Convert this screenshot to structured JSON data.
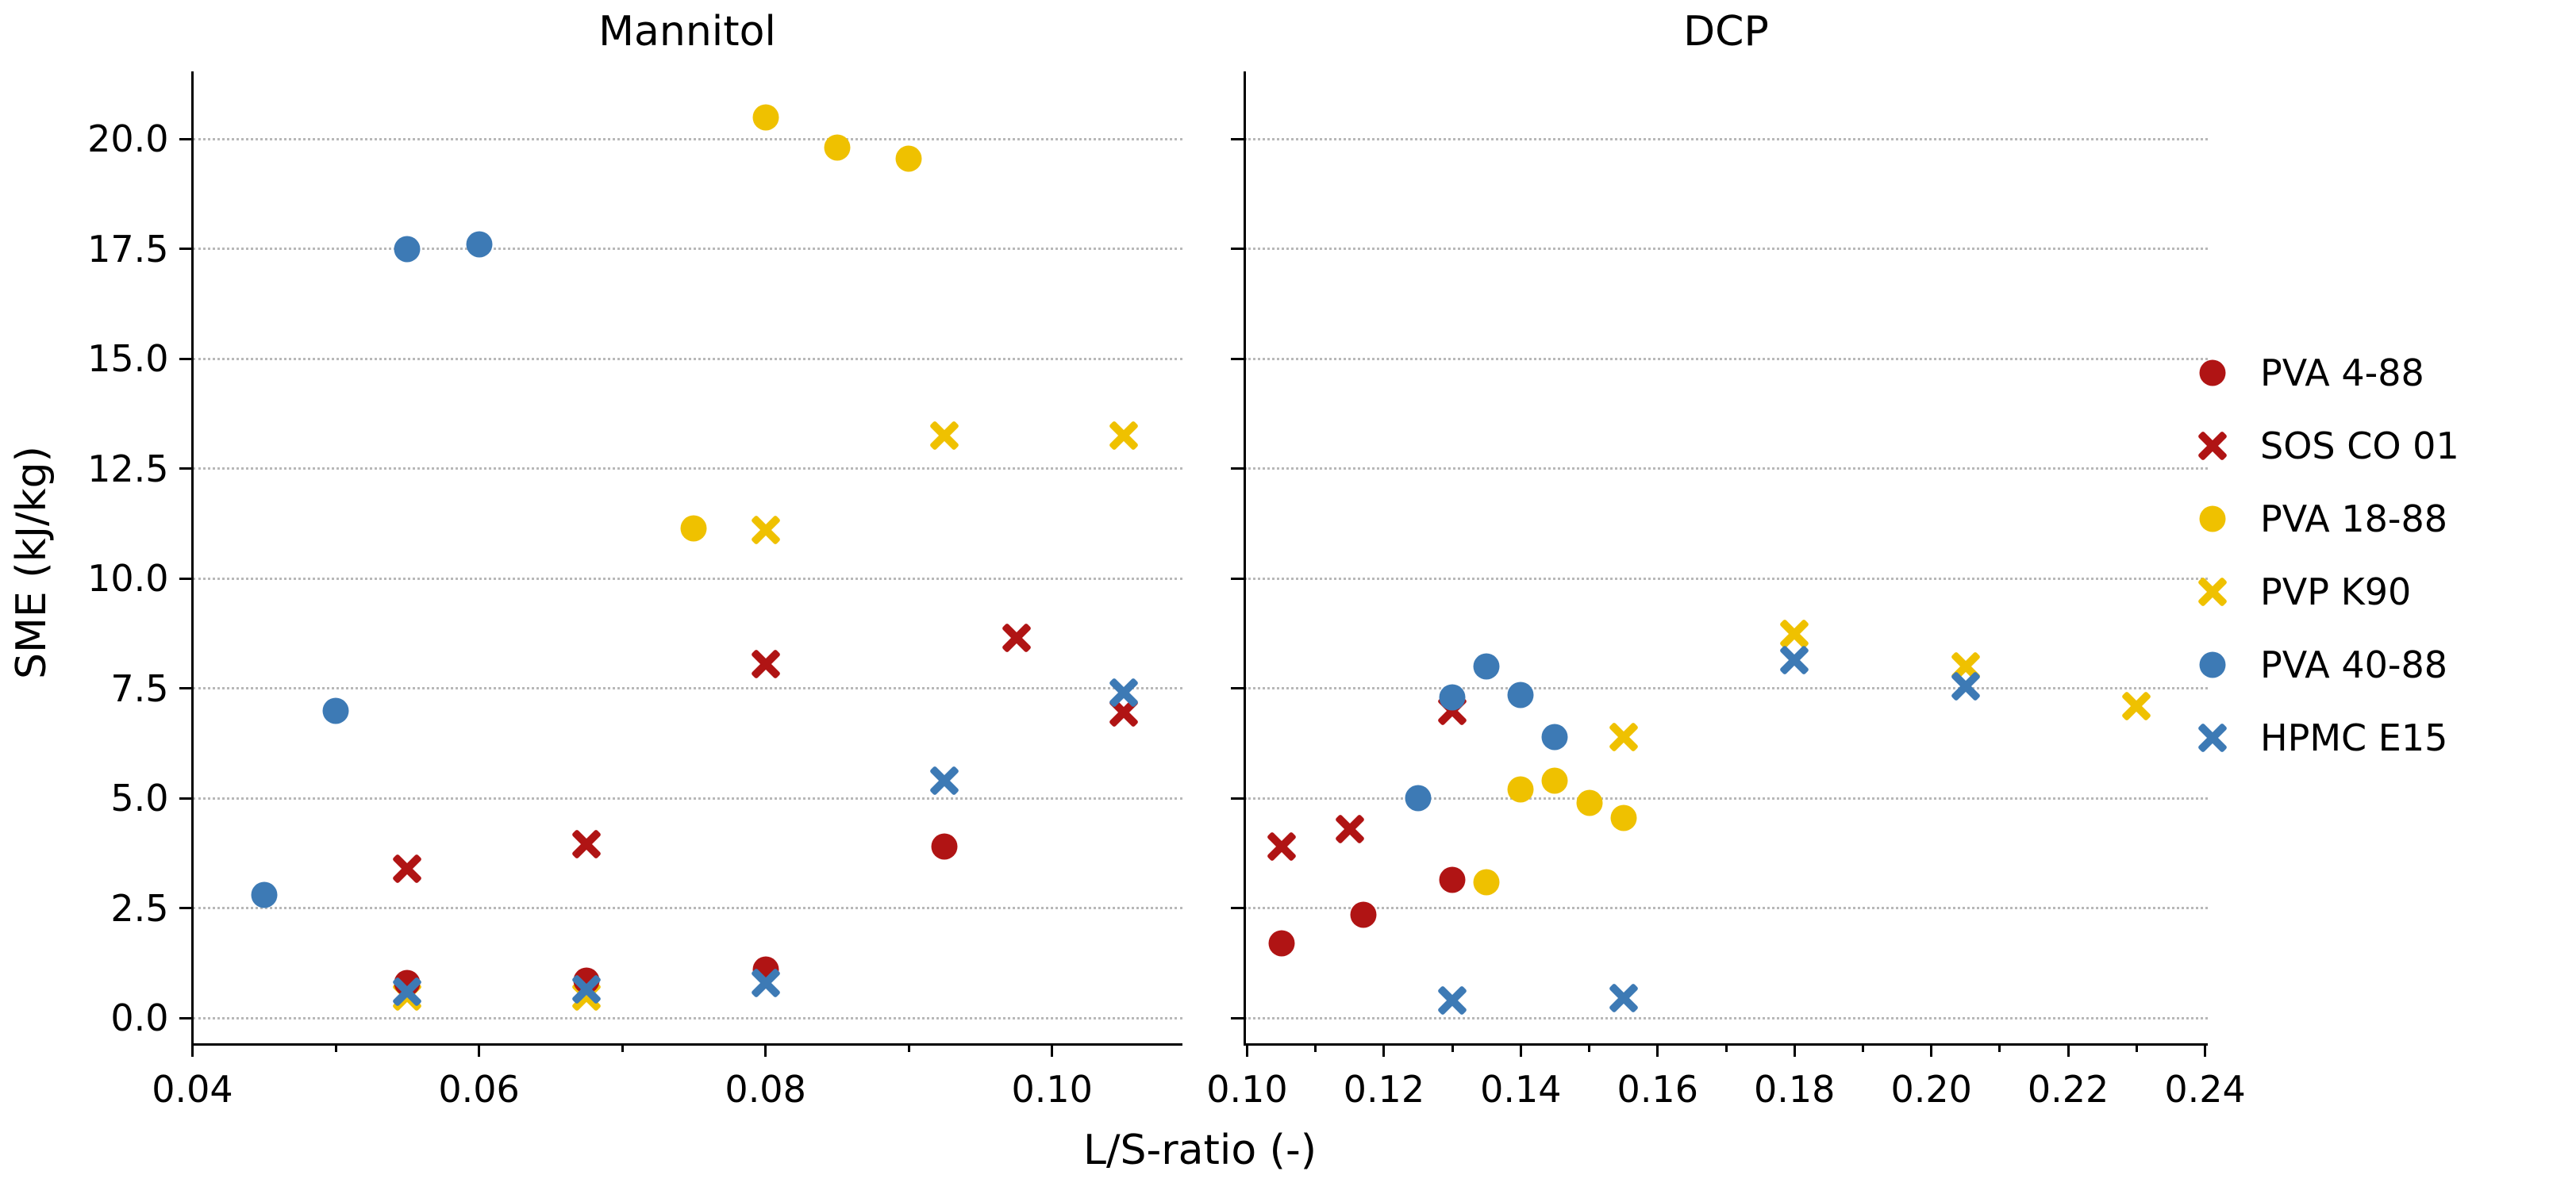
{
  "figure": {
    "ylabel": "SME (kJ/kg)",
    "xlabel": "L/S-ratio (-)"
  },
  "colors": {
    "dark_red": "#b01414",
    "gold": "#efc100",
    "blue": "#3d7ab5",
    "grid": "#b8b8b8",
    "text": "#000000"
  },
  "legend": [
    {
      "label": "PVA 4-88",
      "marker": "circle",
      "color": "#b01414"
    },
    {
      "label": "SOS CO 01",
      "marker": "x",
      "color": "#b01414"
    },
    {
      "label": "PVA 18-88",
      "marker": "circle",
      "color": "#efc100"
    },
    {
      "label": "PVP K90",
      "marker": "x",
      "color": "#efc100"
    },
    {
      "label": "PVA 40-88",
      "marker": "circle",
      "color": "#3d7ab5"
    },
    {
      "label": "HPMC E15",
      "marker": "x",
      "color": "#3d7ab5"
    }
  ],
  "chart_data": [
    {
      "type": "scatter",
      "title": "Mannitol",
      "xlabel": "L/S-ratio (-)",
      "ylabel": "SME (kJ/kg)",
      "xlim": [
        0.04,
        0.1091
      ],
      "ylim": [
        -0.59,
        21.54
      ],
      "xticks": [
        0.04,
        0.06,
        0.08,
        0.1
      ],
      "xtick_labels": [
        "0.04",
        "0.06",
        "0.08",
        "0.10"
      ],
      "xticks_minor": [
        0.05,
        0.07,
        0.09
      ],
      "yticks": [
        0.0,
        2.5,
        5.0,
        7.5,
        10.0,
        12.5,
        15.0,
        17.5,
        20.0
      ],
      "ytick_labels": [
        "0.0",
        "2.5",
        "5.0",
        "7.5",
        "10.0",
        "12.5",
        "15.0",
        "17.5",
        "20.0"
      ],
      "grid": "horizontal-dotted",
      "series": [
        {
          "name": "PVA 18-88",
          "marker": "circle",
          "color": "#efc100",
          "points": [
            [
              0.075,
              11.15
            ],
            [
              0.08,
              20.5
            ],
            [
              0.085,
              19.8
            ],
            [
              0.09,
              19.55
            ]
          ]
        },
        {
          "name": "PVP K90",
          "marker": "x",
          "color": "#efc100",
          "points": [
            [
              0.055,
              0.5
            ],
            [
              0.0675,
              0.5
            ],
            [
              0.08,
              11.1
            ],
            [
              0.0925,
              13.25
            ],
            [
              0.105,
              13.25
            ]
          ]
        },
        {
          "name": "PVA 4-88",
          "marker": "circle",
          "color": "#b01414",
          "points": [
            [
              0.055,
              0.8
            ],
            [
              0.0675,
              0.85
            ],
            [
              0.08,
              1.1
            ],
            [
              0.0925,
              3.9
            ]
          ]
        },
        {
          "name": "SOS CO 01",
          "marker": "x",
          "color": "#b01414",
          "points": [
            [
              0.055,
              3.4
            ],
            [
              0.0675,
              3.95
            ],
            [
              0.08,
              8.05
            ],
            [
              0.0975,
              8.65
            ],
            [
              0.105,
              6.95
            ]
          ]
        },
        {
          "name": "PVA 40-88",
          "marker": "circle",
          "color": "#3d7ab5",
          "points": [
            [
              0.045,
              2.8
            ],
            [
              0.05,
              7.0
            ],
            [
              0.055,
              17.5
            ],
            [
              0.06,
              17.6
            ]
          ]
        },
        {
          "name": "HPMC E15",
          "marker": "x",
          "color": "#3d7ab5",
          "points": [
            [
              0.055,
              0.6
            ],
            [
              0.0675,
              0.65
            ],
            [
              0.08,
              0.8
            ],
            [
              0.0925,
              5.4
            ],
            [
              0.105,
              7.4
            ]
          ]
        }
      ]
    },
    {
      "type": "scatter",
      "title": "DCP",
      "xlabel": "L/S-ratio (-)",
      "ylabel": "SME (kJ/kg)",
      "xlim": [
        0.0996,
        0.2404
      ],
      "ylim": [
        -0.59,
        21.54
      ],
      "xticks": [
        0.1,
        0.12,
        0.14,
        0.16,
        0.18,
        0.2,
        0.22,
        0.24
      ],
      "xtick_labels": [
        "0.10",
        "0.12",
        "0.14",
        "0.16",
        "0.18",
        "0.20",
        "0.22",
        "0.24"
      ],
      "xticks_minor": [
        0.11,
        0.13,
        0.15,
        0.17,
        0.19,
        0.21,
        0.23
      ],
      "yticks": [
        0.0,
        2.5,
        5.0,
        7.5,
        10.0,
        12.5,
        15.0,
        17.5,
        20.0
      ],
      "ytick_labels": [],
      "grid": "horizontal-dotted",
      "series": [
        {
          "name": "PVA 18-88",
          "marker": "circle",
          "color": "#efc100",
          "points": [
            [
              0.135,
              3.1
            ],
            [
              0.14,
              5.2
            ],
            [
              0.145,
              5.4
            ],
            [
              0.15,
              4.9
            ],
            [
              0.155,
              4.55
            ]
          ]
        },
        {
          "name": "PVP K90",
          "marker": "x",
          "color": "#efc100",
          "points": [
            [
              0.155,
              6.4
            ],
            [
              0.18,
              8.75
            ],
            [
              0.205,
              8.0
            ],
            [
              0.23,
              7.1
            ]
          ]
        },
        {
          "name": "PVA 4-88",
          "marker": "circle",
          "color": "#b01414",
          "points": [
            [
              0.105,
              1.7
            ],
            [
              0.117,
              2.35
            ],
            [
              0.13,
              3.15
            ]
          ]
        },
        {
          "name": "SOS CO 01",
          "marker": "x",
          "color": "#b01414",
          "points": [
            [
              0.105,
              3.9
            ],
            [
              0.115,
              4.3
            ],
            [
              0.13,
              7.0
            ]
          ]
        },
        {
          "name": "PVA 40-88",
          "marker": "circle",
          "color": "#3d7ab5",
          "points": [
            [
              0.125,
              5.0
            ],
            [
              0.13,
              7.3
            ],
            [
              0.135,
              8.0
            ],
            [
              0.14,
              7.35
            ],
            [
              0.145,
              6.4
            ]
          ]
        },
        {
          "name": "HPMC E15",
          "marker": "x",
          "color": "#3d7ab5",
          "points": [
            [
              0.13,
              0.4
            ],
            [
              0.155,
              0.45
            ],
            [
              0.18,
              8.15
            ],
            [
              0.205,
              7.55
            ]
          ]
        }
      ]
    }
  ]
}
